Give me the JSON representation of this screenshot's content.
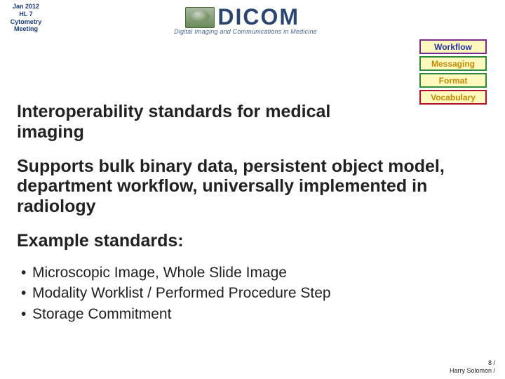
{
  "header": {
    "meeting_label_line1": "Jan 2012",
    "meeting_label_line2": "HL 7",
    "meeting_label_line3": "Cytometry",
    "meeting_label_line4": "Meeting"
  },
  "logo": {
    "text": "DICOM",
    "registered": "®",
    "tagline": "Digital Imaging and Communications in Medicine",
    "globe_top_color": "#a8b8a0",
    "globe_bottom_color": "#6a8a5a",
    "text_color": "#2a4570"
  },
  "tags": {
    "workflow": {
      "label": "Workflow",
      "bg": "#fff9c0",
      "fg": "#2233aa",
      "border": "#7a2a8a"
    },
    "messaging": {
      "label": "Messaging",
      "bg": "#fff9c0",
      "fg": "#c08a00",
      "border": "#2e8a3a"
    },
    "format": {
      "label": "Format",
      "bg": "#fff9c0",
      "fg": "#c08a00",
      "border": "#2e8a3a"
    },
    "vocabulary": {
      "label": "Vocabulary",
      "bg": "#fff9c0",
      "fg": "#c08a00",
      "border": "#b01030"
    }
  },
  "headings": {
    "interop": "Interoperability standards for medical imaging",
    "supports": "Supports bulk binary data, persistent object model, department workflow, universally implemented in radiology",
    "example": "Example standards:"
  },
  "bullets": {
    "b1": "Microscopic Image, Whole Slide Image",
    "b2": "Modality Worklist / Performed Procedure Step",
    "b3": "Storage Commitment"
  },
  "footer": {
    "page": "8 /",
    "author": "Harry Solomon /"
  },
  "style": {
    "page_bg": "#ffffff",
    "heading_fontsize_pt": 18,
    "bullet_fontsize_pt": 16,
    "header_label_fontsize_pt": 7,
    "footer_fontsize_pt": 7,
    "tag_fontsize_pt": 9,
    "heading_color": "#222222",
    "header_label_color": "#1a3a7a"
  }
}
